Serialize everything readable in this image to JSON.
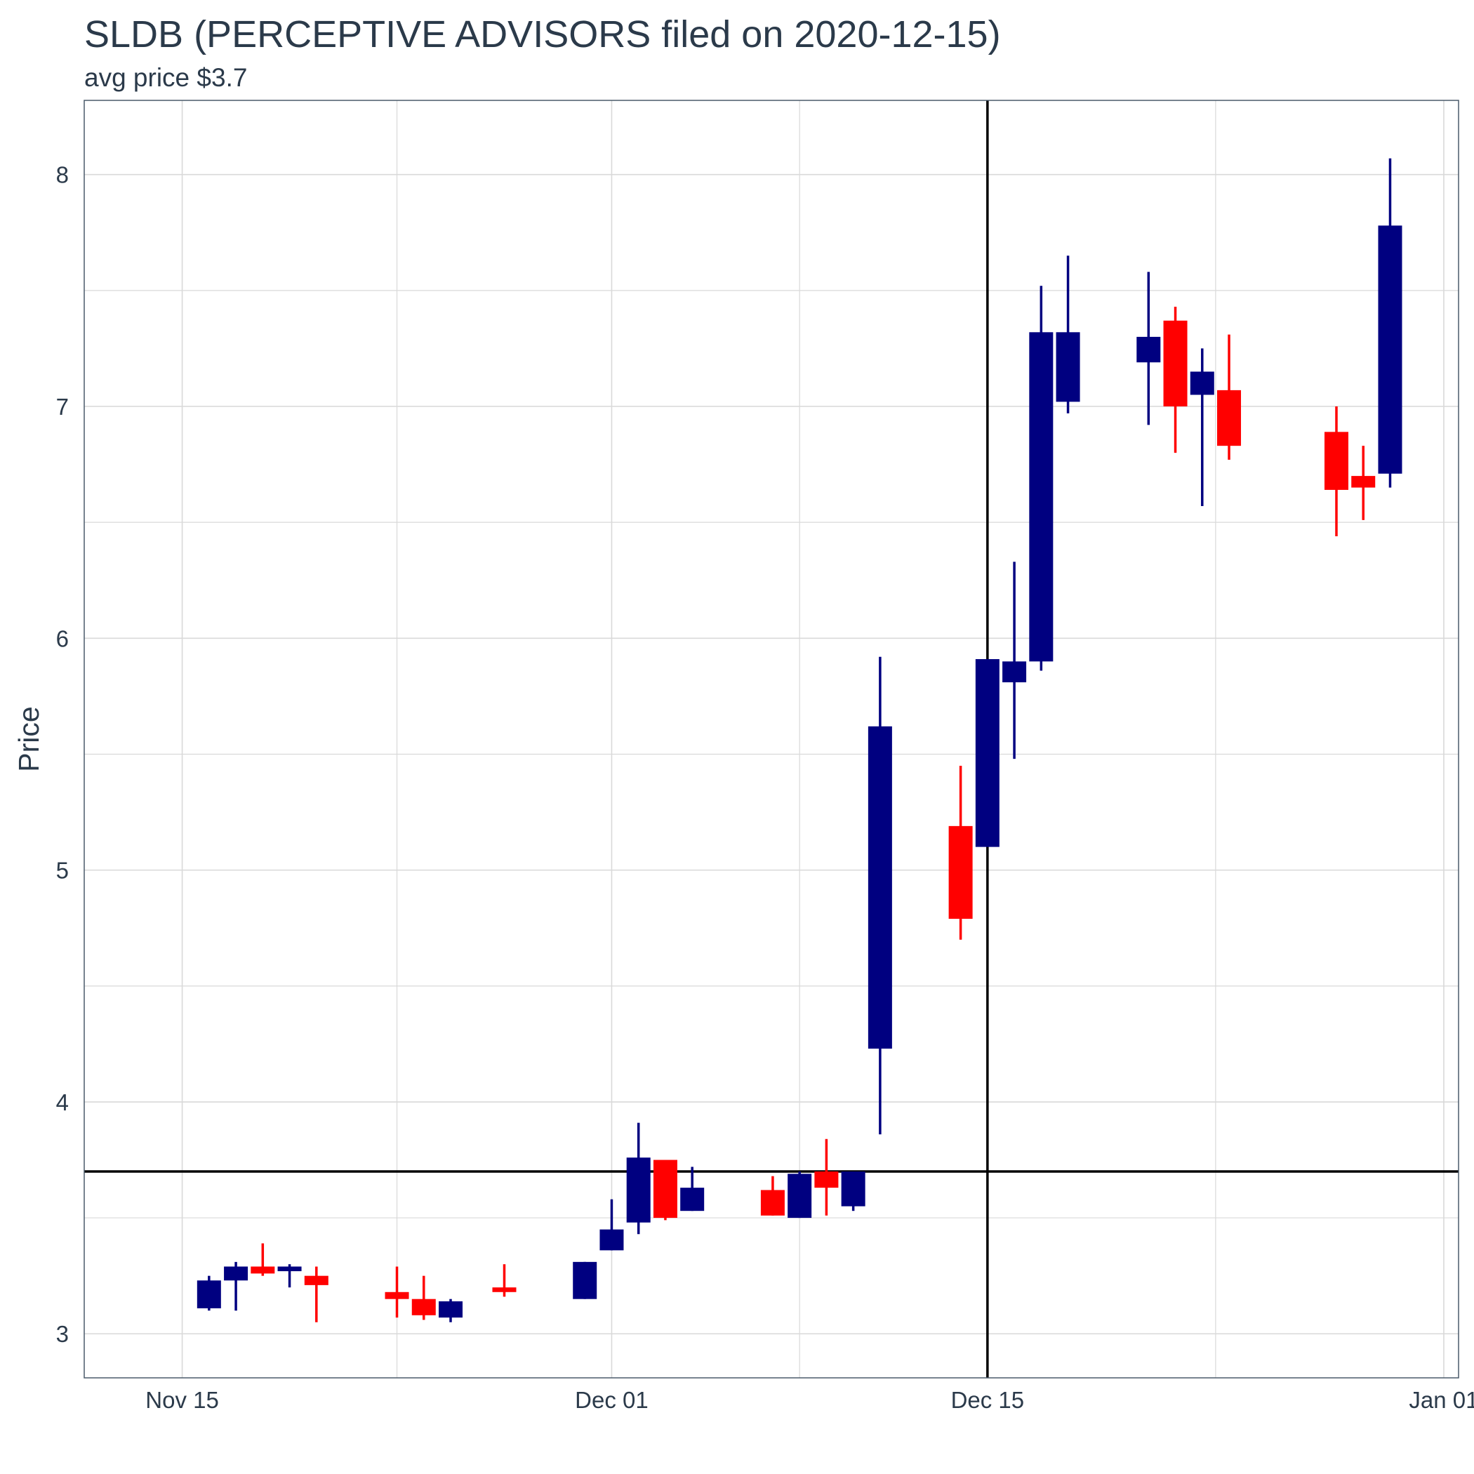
{
  "chart_data": {
    "type": "candlestick",
    "title": "SLDB (PERCEPTIVE ADVISORS filed on 2020-12-15)",
    "subtitle": "avg price $3.7",
    "xlabel": "",
    "ylabel": "Price",
    "x_ticks": [
      {
        "date": "2020-11-15",
        "label": "Nov 15"
      },
      {
        "date": "2020-12-01",
        "label": "Dec 01"
      },
      {
        "date": "2020-12-15",
        "label": "Dec 15"
      },
      {
        "date": "2021-01-01",
        "label": "Jan 01"
      }
    ],
    "y_ticks": [
      3,
      4,
      5,
      6,
      7,
      8
    ],
    "xlim": [
      "2020-11-13.35",
      "2021-01-01.55"
    ],
    "ylim": [
      2.81,
      8.32
    ],
    "grid": true,
    "colors": {
      "up": "#000080",
      "down": "#ff0000",
      "reference": "#000000",
      "grid": "#d9d9d9",
      "panel_border": "#4a5a6a"
    },
    "reference_lines": {
      "filing_date": "2020-12-15",
      "avg_price": 3.7
    },
    "candles": [
      {
        "date": "2020-11-16",
        "open": 3.11,
        "high": 3.25,
        "low": 3.1,
        "close": 3.23
      },
      {
        "date": "2020-11-17",
        "open": 3.23,
        "high": 3.31,
        "low": 3.1,
        "close": 3.29
      },
      {
        "date": "2020-11-18",
        "open": 3.29,
        "high": 3.39,
        "low": 3.25,
        "close": 3.26
      },
      {
        "date": "2020-11-19",
        "open": 3.27,
        "high": 3.3,
        "low": 3.2,
        "close": 3.29
      },
      {
        "date": "2020-11-20",
        "open": 3.25,
        "high": 3.29,
        "low": 3.05,
        "close": 3.21
      },
      {
        "date": "2020-11-23",
        "open": 3.18,
        "high": 3.29,
        "low": 3.07,
        "close": 3.15
      },
      {
        "date": "2020-11-24",
        "open": 3.15,
        "high": 3.25,
        "low": 3.06,
        "close": 3.08
      },
      {
        "date": "2020-11-25",
        "open": 3.07,
        "high": 3.15,
        "low": 3.05,
        "close": 3.14
      },
      {
        "date": "2020-11-27",
        "open": 3.2,
        "high": 3.3,
        "low": 3.16,
        "close": 3.18
      },
      {
        "date": "2020-11-30",
        "open": 3.15,
        "high": 3.31,
        "low": 3.15,
        "close": 3.31
      },
      {
        "date": "2020-12-01",
        "open": 3.36,
        "high": 3.58,
        "low": 3.36,
        "close": 3.45
      },
      {
        "date": "2020-12-02",
        "open": 3.48,
        "high": 3.91,
        "low": 3.43,
        "close": 3.76
      },
      {
        "date": "2020-12-03",
        "open": 3.75,
        "high": 3.75,
        "low": 3.49,
        "close": 3.5
      },
      {
        "date": "2020-12-04",
        "open": 3.53,
        "high": 3.72,
        "low": 3.53,
        "close": 3.63
      },
      {
        "date": "2020-12-07",
        "open": 3.62,
        "high": 3.68,
        "low": 3.51,
        "close": 3.51
      },
      {
        "date": "2020-12-08",
        "open": 3.5,
        "high": 3.7,
        "low": 3.5,
        "close": 3.69
      },
      {
        "date": "2020-12-09",
        "open": 3.7,
        "high": 3.84,
        "low": 3.51,
        "close": 3.63
      },
      {
        "date": "2020-12-10",
        "open": 3.55,
        "high": 3.7,
        "low": 3.53,
        "close": 3.7
      },
      {
        "date": "2020-12-11",
        "open": 4.23,
        "high": 5.92,
        "low": 3.86,
        "close": 5.62
      },
      {
        "date": "2020-12-14",
        "open": 5.19,
        "high": 5.45,
        "low": 4.7,
        "close": 4.79
      },
      {
        "date": "2020-12-15",
        "open": 5.1,
        "high": 5.91,
        "low": 5.1,
        "close": 5.91
      },
      {
        "date": "2020-12-16",
        "open": 5.81,
        "high": 6.33,
        "low": 5.48,
        "close": 5.9
      },
      {
        "date": "2020-12-17",
        "open": 5.9,
        "high": 7.52,
        "low": 5.86,
        "close": 7.32
      },
      {
        "date": "2020-12-18",
        "open": 7.02,
        "high": 7.65,
        "low": 6.97,
        "close": 7.32
      },
      {
        "date": "2020-12-21",
        "open": 7.19,
        "high": 7.58,
        "low": 6.92,
        "close": 7.3
      },
      {
        "date": "2020-12-22",
        "open": 7.37,
        "high": 7.43,
        "low": 6.8,
        "close": 7.0
      },
      {
        "date": "2020-12-23",
        "open": 7.05,
        "high": 7.25,
        "low": 6.57,
        "close": 7.15
      },
      {
        "date": "2020-12-24",
        "open": 7.07,
        "high": 7.31,
        "low": 6.77,
        "close": 6.83
      },
      {
        "date": "2020-12-28",
        "open": 6.89,
        "high": 7.0,
        "low": 6.44,
        "close": 6.64
      },
      {
        "date": "2020-12-29",
        "open": 6.7,
        "high": 6.83,
        "low": 6.51,
        "close": 6.65
      },
      {
        "date": "2020-12-30",
        "open": 6.71,
        "high": 8.07,
        "low": 6.65,
        "close": 7.78
      }
    ]
  }
}
